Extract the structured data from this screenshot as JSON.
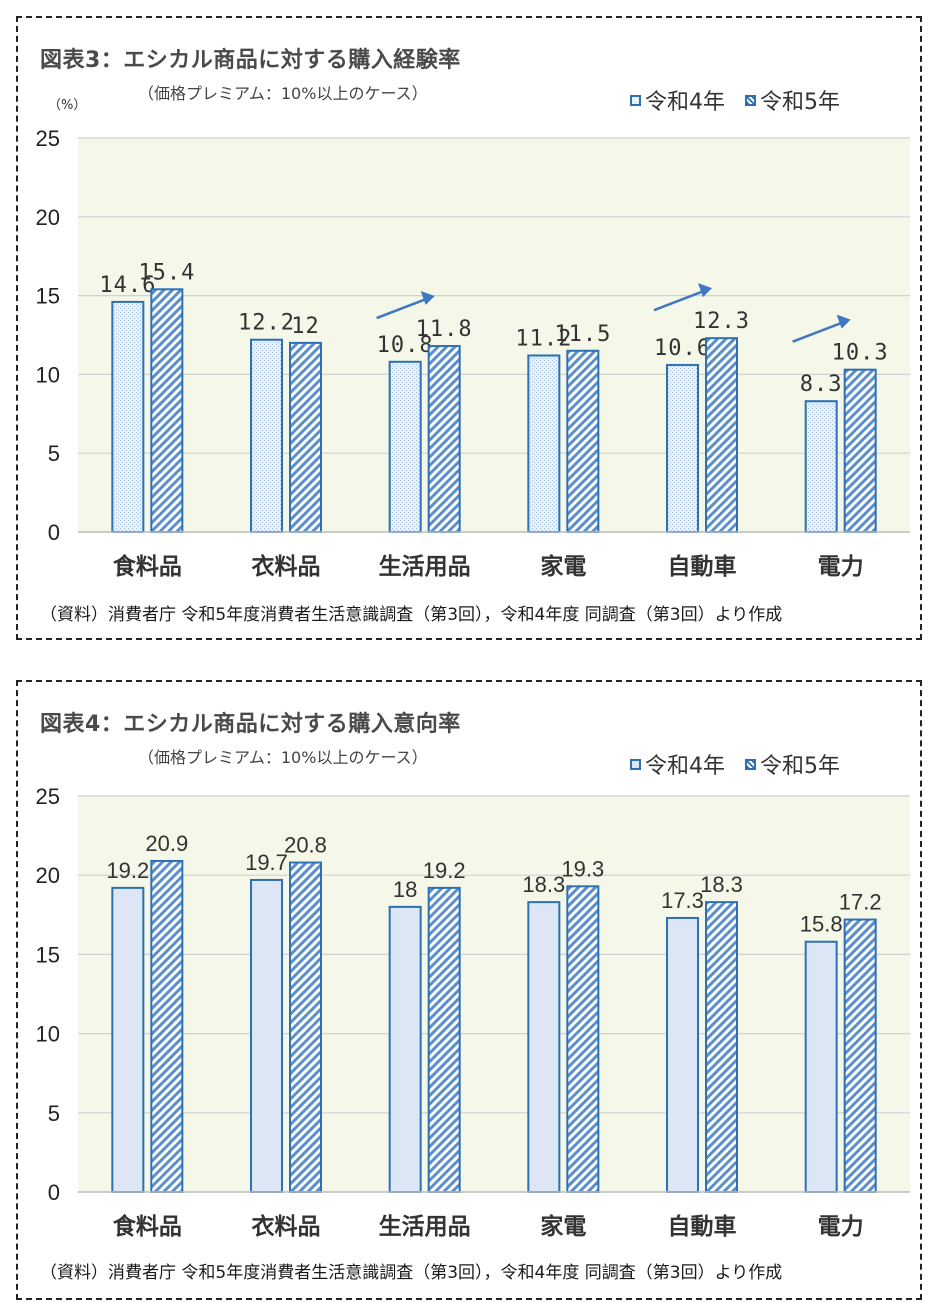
{
  "chart_data": [
    {
      "type": "bar",
      "title": "図表3：エシカル商品に対する購入経験率",
      "subtitle": "（価格プレミアム：10%以上のケース）",
      "ylabel": "（%）",
      "categories": [
        "食料品",
        "衣料品",
        "生活用品",
        "家電",
        "自動車",
        "電力"
      ],
      "series": [
        {
          "name": "令和4年",
          "values": [
            14.6,
            12.2,
            10.8,
            11.2,
            10.6,
            8.3
          ]
        },
        {
          "name": "令和5年",
          "values": [
            15.4,
            12,
            11.8,
            11.5,
            12.3,
            10.3
          ]
        }
      ],
      "data_labels": [
        [
          "14.6",
          "12.2",
          "10.8",
          "11.2",
          "10.6",
          "8.3"
        ],
        [
          "15.4",
          "12",
          "11.8",
          "11.5",
          "12.3",
          "10.3"
        ]
      ],
      "yticks": [
        "0",
        "5",
        "10",
        "15",
        "20",
        "25"
      ],
      "ylim": [
        0,
        25
      ],
      "grid": true,
      "legend_position": "top-right",
      "plot_background": "#f5f8e8",
      "series_colors": [
        "#2e6fb5",
        "#2e6fb5"
      ],
      "annotations": {
        "trend_arrows_over": [
          "生活用品",
          "自動車",
          "電力"
        ],
        "arrow_color": "#3e78c2"
      },
      "source": "（資料）消費者庁 令和5年度消費者生活意識調査（第3回），令和4年度 同調査（第3回）より作成"
    },
    {
      "type": "bar",
      "title": "図表4：エシカル商品に対する購入意向率",
      "subtitle": "（価格プレミアム：10%以上のケース）",
      "ylabel": "",
      "categories": [
        "食料品",
        "衣料品",
        "生活用品",
        "家電",
        "自動車",
        "電力"
      ],
      "series": [
        {
          "name": "令和4年",
          "values": [
            19.2,
            19.7,
            18,
            18.3,
            17.3,
            15.8
          ]
        },
        {
          "name": "令和5年",
          "values": [
            20.9,
            20.8,
            19.2,
            19.3,
            18.3,
            17.2
          ]
        }
      ],
      "data_labels": [
        [
          "19.2",
          "19.7",
          "18",
          "18.3",
          "17.3",
          "15.8"
        ],
        [
          "20.9",
          "20.8",
          "19.2",
          "19.3",
          "18.3",
          "17.2"
        ]
      ],
      "yticks": [
        "0",
        "5",
        "10",
        "15",
        "20",
        "25"
      ],
      "ylim": [
        0,
        25
      ],
      "grid": true,
      "legend_position": "top-right",
      "plot_background": "#f5f8e8",
      "series_colors": [
        "#2e6fb5",
        "#2e6fb5"
      ],
      "source": "（資料）消費者庁 令和5年度消費者生活意識調査（第3回），令和4年度 同調査（第3回）より作成"
    }
  ]
}
